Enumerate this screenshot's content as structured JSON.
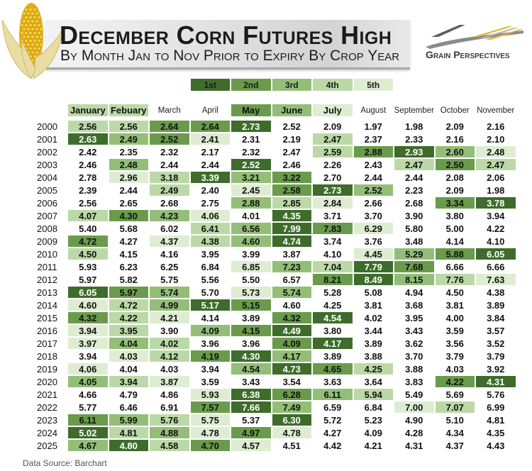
{
  "chart_data": {
    "type": "table",
    "title": "December Corn Futures High",
    "subtitle": "By Month Jan to Nov Prior to Expiry By Crop Year",
    "legend": [
      {
        "label": "1st",
        "rank": 1
      },
      {
        "label": "2nd",
        "rank": 2
      },
      {
        "label": "3rd",
        "rank": 3
      },
      {
        "label": "4th",
        "rank": 4
      },
      {
        "label": "5th",
        "rank": 5
      }
    ],
    "columns": [
      "January",
      "Febuary",
      "March",
      "April",
      "May",
      "June",
      "July",
      "August",
      "September",
      "October",
      "November"
    ],
    "column_header_ranks": [
      4,
      4,
      null,
      null,
      2,
      3,
      5,
      null,
      null,
      null,
      null
    ],
    "rows": [
      {
        "year": "2000",
        "values": [
          2.56,
          2.56,
          2.64,
          2.64,
          2.73,
          2.52,
          2.09,
          1.97,
          1.98,
          2.09,
          2.16
        ],
        "ranks": [
          4,
          4,
          2,
          2,
          1,
          null,
          null,
          null,
          null,
          null,
          null
        ]
      },
      {
        "year": "2001",
        "values": [
          2.63,
          2.49,
          2.52,
          2.41,
          2.31,
          2.19,
          2.47,
          2.37,
          2.33,
          2.16,
          2.1
        ],
        "ranks": [
          1,
          3,
          2,
          5,
          null,
          null,
          4,
          null,
          null,
          null,
          null
        ]
      },
      {
        "year": "2002",
        "values": [
          2.42,
          2.35,
          2.32,
          2.17,
          2.32,
          2.47,
          2.59,
          2.88,
          2.93,
          2.6,
          2.48
        ],
        "ranks": [
          null,
          null,
          null,
          null,
          null,
          null,
          4,
          2,
          1,
          3,
          5
        ]
      },
      {
        "year": "2003",
        "values": [
          2.46,
          2.48,
          2.44,
          2.44,
          2.52,
          2.46,
          2.26,
          2.43,
          2.47,
          2.5,
          2.47
        ],
        "ranks": [
          null,
          3,
          null,
          null,
          1,
          null,
          null,
          null,
          4,
          2,
          4
        ]
      },
      {
        "year": "2004",
        "values": [
          2.78,
          2.96,
          3.18,
          3.39,
          3.21,
          3.22,
          2.7,
          2.44,
          2.44,
          2.08,
          2.06
        ],
        "ranks": [
          null,
          5,
          4,
          1,
          3,
          2,
          null,
          null,
          null,
          null,
          null
        ]
      },
      {
        "year": "2005",
        "values": [
          2.39,
          2.44,
          2.49,
          2.4,
          2.45,
          2.58,
          2.73,
          2.52,
          2.23,
          2.09,
          1.98
        ],
        "ranks": [
          null,
          null,
          4,
          null,
          5,
          2,
          1,
          3,
          null,
          null,
          null
        ]
      },
      {
        "year": "2006",
        "values": [
          2.56,
          2.65,
          2.68,
          2.75,
          2.88,
          2.85,
          2.84,
          2.66,
          2.68,
          3.34,
          3.78
        ],
        "ranks": [
          null,
          null,
          null,
          null,
          3,
          4,
          5,
          null,
          null,
          2,
          1
        ]
      },
      {
        "year": "2007",
        "values": [
          4.07,
          4.3,
          4.23,
          4.06,
          4.01,
          4.35,
          3.71,
          3.7,
          3.9,
          3.8,
          3.94
        ],
        "ranks": [
          4,
          2,
          3,
          5,
          null,
          1,
          null,
          null,
          null,
          null,
          null
        ]
      },
      {
        "year": "2008",
        "values": [
          5.4,
          5.68,
          6.02,
          6.41,
          6.56,
          7.99,
          7.83,
          6.29,
          5.8,
          5.0,
          4.22
        ],
        "ranks": [
          null,
          null,
          null,
          4,
          3,
          1,
          2,
          5,
          null,
          null,
          null
        ]
      },
      {
        "year": "2009",
        "values": [
          4.72,
          4.27,
          4.37,
          4.38,
          4.6,
          4.74,
          3.74,
          3.76,
          3.48,
          4.14,
          4.1
        ],
        "ranks": [
          2,
          null,
          5,
          4,
          3,
          1,
          null,
          null,
          null,
          null,
          null
        ]
      },
      {
        "year": "2010",
        "values": [
          4.5,
          4.15,
          4.16,
          3.95,
          3.99,
          3.87,
          4.1,
          4.45,
          5.29,
          5.88,
          6.05
        ],
        "ranks": [
          4,
          null,
          null,
          null,
          null,
          null,
          null,
          5,
          3,
          2,
          1
        ]
      },
      {
        "year": "2011",
        "values": [
          5.93,
          6.23,
          6.25,
          6.84,
          6.85,
          7.23,
          7.04,
          7.79,
          7.68,
          6.66,
          6.66
        ],
        "ranks": [
          null,
          null,
          null,
          null,
          5,
          3,
          4,
          1,
          2,
          null,
          null
        ]
      },
      {
        "year": "2012",
        "values": [
          5.97,
          5.82,
          5.75,
          5.56,
          5.5,
          6.57,
          8.21,
          8.49,
          8.15,
          7.76,
          7.63
        ],
        "ranks": [
          null,
          null,
          null,
          null,
          null,
          null,
          2,
          1,
          3,
          4,
          5
        ]
      },
      {
        "year": "2013",
        "values": [
          6.05,
          5.97,
          5.74,
          5.7,
          5.73,
          5.74,
          5.28,
          5.08,
          4.94,
          4.5,
          4.38
        ],
        "ranks": [
          1,
          2,
          3,
          null,
          5,
          3,
          null,
          null,
          null,
          null,
          null
        ]
      },
      {
        "year": "2014",
        "values": [
          4.6,
          4.72,
          4.99,
          5.17,
          5.15,
          4.6,
          4.25,
          3.81,
          3.68,
          3.81,
          3.89
        ],
        "ranks": [
          5,
          4,
          3,
          1,
          2,
          null,
          null,
          null,
          null,
          null,
          null
        ]
      },
      {
        "year": "2015",
        "values": [
          4.32,
          4.22,
          4.21,
          4.14,
          3.89,
          4.32,
          4.54,
          4.02,
          3.95,
          4.0,
          3.84
        ],
        "ranks": [
          2,
          4,
          5,
          null,
          null,
          2,
          1,
          null,
          null,
          null,
          null
        ]
      },
      {
        "year": "2016",
        "values": [
          3.94,
          3.95,
          3.9,
          4.09,
          4.15,
          4.49,
          3.8,
          3.44,
          3.43,
          3.59,
          3.57
        ],
        "ranks": [
          5,
          4,
          null,
          3,
          2,
          1,
          null,
          null,
          null,
          null,
          null
        ]
      },
      {
        "year": "2017",
        "values": [
          3.97,
          4.04,
          4.02,
          3.96,
          3.96,
          4.09,
          4.17,
          3.89,
          3.62,
          3.56,
          3.52
        ],
        "ranks": [
          5,
          3,
          4,
          null,
          null,
          2,
          1,
          null,
          null,
          null,
          null
        ]
      },
      {
        "year": "2018",
        "values": [
          3.94,
          4.03,
          4.12,
          4.19,
          4.3,
          4.17,
          3.89,
          3.88,
          3.7,
          3.79,
          3.79
        ],
        "ranks": [
          null,
          5,
          4,
          2,
          1,
          3,
          null,
          null,
          null,
          null,
          null
        ]
      },
      {
        "year": "2019",
        "values": [
          4.06,
          4.04,
          4.03,
          3.94,
          4.54,
          4.73,
          4.65,
          4.25,
          3.88,
          4.03,
          3.92
        ],
        "ranks": [
          5,
          null,
          null,
          null,
          3,
          1,
          2,
          4,
          null,
          null,
          null
        ]
      },
      {
        "year": "2020",
        "values": [
          4.05,
          3.94,
          3.87,
          3.59,
          3.43,
          3.54,
          3.63,
          3.64,
          3.83,
          4.22,
          4.31
        ],
        "ranks": [
          3,
          4,
          5,
          null,
          null,
          null,
          null,
          null,
          null,
          2,
          1
        ]
      },
      {
        "year": "2021",
        "values": [
          4.66,
          4.79,
          4.86,
          5.93,
          6.38,
          6.28,
          6.11,
          5.94,
          5.49,
          5.69,
          5.76
        ],
        "ranks": [
          null,
          null,
          null,
          5,
          1,
          2,
          3,
          4,
          null,
          null,
          null
        ]
      },
      {
        "year": "2022",
        "values": [
          5.77,
          6.46,
          6.91,
          7.57,
          7.66,
          7.49,
          6.59,
          6.84,
          7.0,
          7.07,
          6.99
        ],
        "ranks": [
          null,
          null,
          null,
          2,
          1,
          3,
          null,
          null,
          5,
          4,
          null
        ]
      },
      {
        "year": "2023",
        "values": [
          6.11,
          5.99,
          5.76,
          5.75,
          5.37,
          6.3,
          5.72,
          5.23,
          4.9,
          5.1,
          4.81
        ],
        "ranks": [
          2,
          3,
          4,
          5,
          null,
          1,
          null,
          null,
          null,
          null,
          null
        ]
      },
      {
        "year": "2024",
        "values": [
          5.02,
          4.81,
          4.88,
          4.78,
          4.97,
          4.78,
          4.27,
          4.09,
          4.28,
          4.34,
          4.35
        ],
        "ranks": [
          1,
          4,
          3,
          5,
          2,
          5,
          null,
          null,
          null,
          null,
          null
        ]
      },
      {
        "year": "2025",
        "values": [
          4.67,
          4.8,
          4.58,
          4.7,
          4.57,
          4.51,
          4.42,
          4.21,
          4.31,
          4.37,
          4.43
        ],
        "ranks": [
          3,
          1,
          4,
          2,
          5,
          null,
          null,
          null,
          null,
          null,
          null
        ]
      }
    ]
  },
  "colors": {
    "rank_1": "#3e6c2b",
    "rank_2": "#6a9b4c",
    "rank_3": "#93be77",
    "rank_4": "#bbd9a6",
    "rank_5": "#deedd2",
    "rank_1_text": "#ffffff",
    "corn_kernel": "#f4cf45",
    "corn_cob": "#e3ad15",
    "corn_husk": "#e9dda3",
    "corn_husk_edge": "#cdb872",
    "logo_gold": "#e3b62a",
    "logo_gray": "#8a8a8a",
    "logo_dark": "#5e5e5e"
  },
  "icons": {
    "corn": "corn-icon",
    "logo": "grain-perspectives-logo"
  },
  "logo": {
    "text": "Grain Perspectives"
  },
  "source_note": "Data Source: Barchart"
}
